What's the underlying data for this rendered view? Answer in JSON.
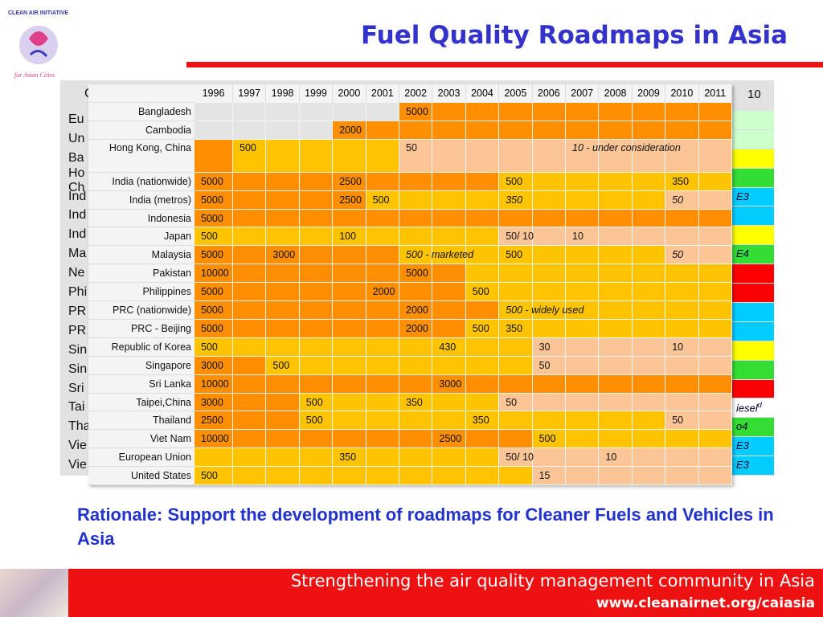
{
  "header": {
    "title": "Fuel Quality Roadmaps in Asia",
    "logo_top": "CLEAN AIR INITIATIVE",
    "logo_bottom": "for Asian Cities"
  },
  "back_table": {
    "header_left": "C",
    "header_right": "10",
    "left": [
      "Eu",
      "Un",
      "Ba",
      "Ho\nCh",
      "Ind",
      "Ind",
      "Ind",
      "Ma",
      "Ne",
      "Phi",
      "PR",
      "PR",
      "Sin",
      "Sin",
      "Sri",
      "Tai",
      "Tha",
      "Vie",
      "Vie"
    ],
    "right": [
      {
        "fill": "#ccffcc"
      },
      {
        "fill": "#ccffcc"
      },
      {
        "fill": "#ffff00"
      },
      {
        "fill": "#33dd33"
      },
      {
        "fill": "#00ccff",
        "text": "E3"
      },
      {
        "fill": "#00ccff"
      },
      {
        "fill": "#ffff00"
      },
      {
        "fill": "#33dd33",
        "text": "E4"
      },
      {
        "fill": "#ff0000"
      },
      {
        "fill": "#ff0000"
      },
      {
        "fill": "#00ccff"
      },
      {
        "fill": "#00ccff"
      },
      {
        "fill": "#ffff00"
      },
      {
        "fill": "#33dd33"
      },
      {
        "fill": "#ff0000"
      },
      {
        "fill": "#ffffff",
        "text": "iesel",
        "sup": "d"
      },
      {
        "fill": "#33dd33",
        "text": "o4"
      },
      {
        "fill": "#00ccff",
        "text": "E3"
      },
      {
        "fill": "#00ccff",
        "text": "E3"
      }
    ]
  },
  "table": {
    "colors": {
      "D": "#ff8f00",
      "M": "#ffc400",
      "L": "#fcc596",
      "E": "#e4e4e4"
    },
    "years": [
      1996,
      1997,
      1998,
      1999,
      2000,
      2001,
      2002,
      2003,
      2004,
      2005,
      2006,
      2007,
      2008,
      2009,
      2010,
      2011
    ],
    "rows": [
      {
        "label": "Bangladesh",
        "fills": "EEEEEEDDDDDDDDDD",
        "values": [
          null,
          null,
          null,
          null,
          null,
          null,
          5000,
          null,
          null,
          null,
          null,
          null,
          null,
          null,
          null,
          null
        ]
      },
      {
        "label": "Cambodia",
        "fills": "EEEEDDDDDDDDDDDD",
        "values": [
          null,
          null,
          null,
          null,
          2000,
          null,
          null,
          null,
          null,
          null,
          null,
          null,
          null,
          null,
          null,
          null
        ]
      },
      {
        "label": "Hong Kong, China",
        "fills": "DMMMMMLLLLLLLLLL",
        "values": [
          null,
          500,
          null,
          null,
          null,
          null,
          50,
          null,
          null,
          null,
          null,
          {
            "text": "10 - under consideration",
            "italic": true
          },
          null,
          null,
          null,
          null
        ]
      },
      {
        "label": "India (nationwide)",
        "fills": "DDDDDDDDDMMMMMMM",
        "values": [
          5000,
          null,
          null,
          null,
          2500,
          null,
          null,
          null,
          null,
          500,
          null,
          null,
          null,
          null,
          350,
          null
        ]
      },
      {
        "label": "India (metros)",
        "fills": "DDDDDMMMMMMMMMLL",
        "values": [
          5000,
          null,
          null,
          null,
          2500,
          500,
          null,
          null,
          null,
          {
            "text": "350",
            "italic": true
          },
          null,
          null,
          null,
          null,
          {
            "text": "50",
            "italic": true
          },
          null
        ]
      },
      {
        "label": "Indonesia",
        "fills": "DDDDDDDDDDDDDDDD",
        "values": [
          5000,
          null,
          null,
          null,
          null,
          null,
          null,
          null,
          null,
          null,
          null,
          null,
          null,
          null,
          null,
          null
        ]
      },
      {
        "label": "Japan",
        "fills": "MMMMMMMMMLLLLLLL",
        "values": [
          500,
          null,
          null,
          null,
          100,
          null,
          null,
          null,
          null,
          "50/ 10",
          null,
          10,
          null,
          null,
          null,
          null
        ]
      },
      {
        "label": "Malaysia",
        "fills": "DDDDDDMMMMMMMMLL",
        "values": [
          5000,
          null,
          3000,
          null,
          null,
          null,
          {
            "text": "500 - marketed",
            "italic": true
          },
          null,
          null,
          500,
          null,
          null,
          null,
          null,
          {
            "text": "50",
            "italic": true
          },
          null
        ]
      },
      {
        "label": "Pakistan",
        "fills": "DDDDDDDDMMMMMMMM",
        "values": [
          10000,
          null,
          null,
          null,
          null,
          null,
          5000,
          null,
          null,
          null,
          null,
          null,
          null,
          null,
          null,
          null
        ]
      },
      {
        "label": "Philippines",
        "fills": "DDDDDDDDMMMMMMMM",
        "values": [
          5000,
          null,
          null,
          null,
          null,
          2000,
          null,
          null,
          500,
          null,
          null,
          null,
          null,
          null,
          null,
          null
        ]
      },
      {
        "label": "PRC (nationwide)",
        "fills": "DDDDDDDDDMMMMMMM",
        "values": [
          5000,
          null,
          null,
          null,
          null,
          null,
          2000,
          null,
          null,
          {
            "text": "500 - widely used",
            "italic": true
          },
          null,
          null,
          null,
          null,
          null,
          null
        ]
      },
      {
        "label": "PRC - Beijing",
        "fills": "DDDDDDDDMMMMMMMM",
        "values": [
          5000,
          null,
          null,
          null,
          null,
          null,
          2000,
          null,
          500,
          350,
          null,
          null,
          null,
          null,
          null,
          null
        ]
      },
      {
        "label": "Republic of Korea",
        "fills": "MMMMMMMMMMLLLLLL",
        "values": [
          500,
          null,
          null,
          null,
          null,
          null,
          null,
          430,
          null,
          null,
          30,
          null,
          null,
          null,
          10,
          null
        ]
      },
      {
        "label": "Singapore",
        "fills": "DDMMMMMMMMLLLLLL",
        "values": [
          3000,
          null,
          500,
          null,
          null,
          null,
          null,
          null,
          null,
          null,
          50,
          null,
          null,
          null,
          null,
          null
        ]
      },
      {
        "label": "Sri Lanka",
        "fills": "DDDDDDDDDDDDDDDD",
        "values": [
          10000,
          null,
          null,
          null,
          null,
          null,
          null,
          3000,
          null,
          null,
          null,
          null,
          null,
          null,
          null,
          null
        ]
      },
      {
        "label": "Taipei,China",
        "fills": "DDDMMMMMMLLLLLLL",
        "values": [
          3000,
          null,
          null,
          500,
          null,
          null,
          350,
          null,
          null,
          50,
          null,
          null,
          null,
          null,
          null,
          null
        ]
      },
      {
        "label": "Thailand",
        "fills": "DDDMMMMMMMMMMMLL",
        "values": [
          2500,
          null,
          null,
          500,
          null,
          null,
          null,
          null,
          350,
          null,
          null,
          null,
          null,
          null,
          50,
          null
        ]
      },
      {
        "label": "Viet Nam",
        "fills": "DDDDDDDDDDMMMMMM",
        "values": [
          10000,
          null,
          null,
          null,
          null,
          null,
          null,
          2500,
          null,
          null,
          500,
          null,
          null,
          null,
          null,
          null
        ]
      },
      {
        "label": "European Union",
        "fills": "MMMMMMMMMLLLLLLL",
        "values": [
          null,
          null,
          null,
          null,
          350,
          null,
          null,
          null,
          null,
          "50/ 10",
          null,
          null,
          10,
          null,
          null,
          null
        ]
      },
      {
        "label": "United States",
        "fills": "MMMMMMMMMMLLLLLL",
        "values": [
          500,
          null,
          null,
          null,
          null,
          null,
          null,
          null,
          null,
          null,
          15,
          null,
          null,
          null,
          null,
          null
        ]
      }
    ]
  },
  "rationale": "Rationale: Support the development of roadmaps for Cleaner Fuels and Vehicles in Asia",
  "footer": {
    "tagline": "Strengthening the air quality management community in Asia",
    "url": "www.cleanairnet.org/caiasia"
  }
}
